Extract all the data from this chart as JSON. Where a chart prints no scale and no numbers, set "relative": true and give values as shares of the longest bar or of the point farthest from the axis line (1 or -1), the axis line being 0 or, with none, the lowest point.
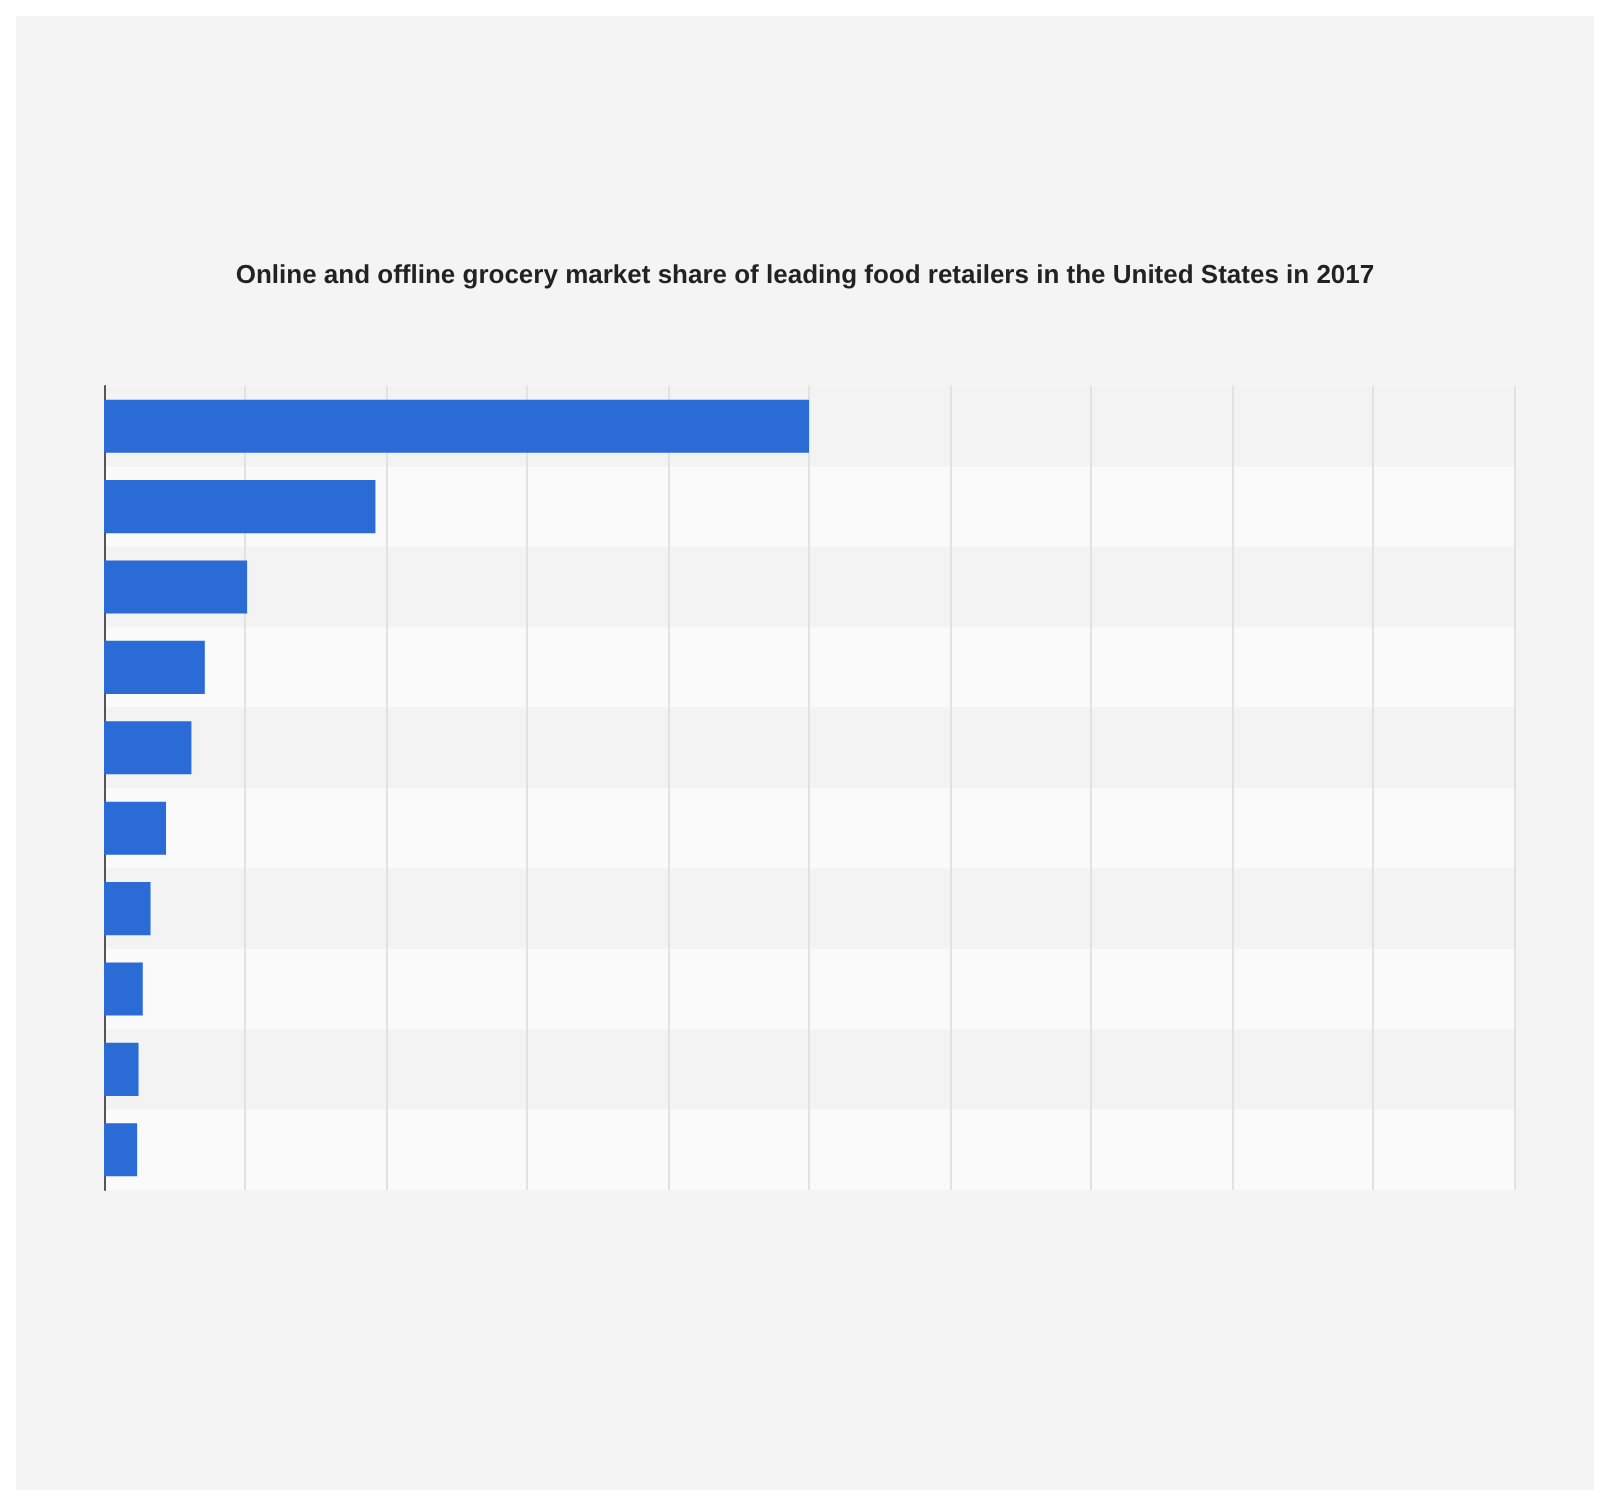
{
  "chart_data": {
    "type": "bar",
    "orientation": "horizontal",
    "relative": true,
    "title": "Online and offline grocery market share of leading food retailers in the United States in 2017",
    "categories": [
      null,
      null,
      null,
      null,
      null,
      null,
      null,
      null,
      null,
      null
    ],
    "values": [
      1,
      0.385,
      0.203,
      0.143,
      0.124,
      0.088,
      0.066,
      0.055,
      0.049,
      0.047
    ],
    "color": "#2a6bd6",
    "grid": "x"
  }
}
